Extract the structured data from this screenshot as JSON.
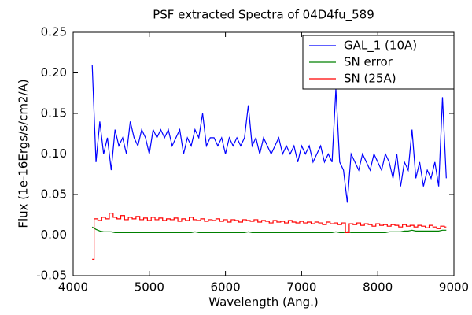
{
  "chart_data": {
    "type": "line",
    "title": "PSF extracted Spectra of 04D4fu_589",
    "xlabel": "Wavelength (Ang.)",
    "ylabel": "Flux (1e-16Ergs/s/cm2/A)",
    "x": [
      4250,
      4300,
      4350,
      4400,
      4450,
      4500,
      4550,
      4600,
      4650,
      4700,
      4750,
      4800,
      4850,
      4900,
      4950,
      5000,
      5050,
      5100,
      5150,
      5200,
      5250,
      5300,
      5350,
      5400,
      5450,
      5500,
      5550,
      5600,
      5650,
      5700,
      5750,
      5800,
      5850,
      5900,
      5950,
      6000,
      6050,
      6100,
      6150,
      6200,
      6250,
      6300,
      6350,
      6400,
      6450,
      6500,
      6550,
      6600,
      6650,
      6700,
      6750,
      6800,
      6850,
      6900,
      6950,
      7000,
      7050,
      7100,
      7150,
      7200,
      7250,
      7300,
      7350,
      7400,
      7450,
      7500,
      7550,
      7600,
      7650,
      7700,
      7750,
      7800,
      7850,
      7900,
      7950,
      8000,
      8050,
      8100,
      8150,
      8200,
      8250,
      8300,
      8350,
      8400,
      8450,
      8500,
      8550,
      8600,
      8650,
      8700,
      8750,
      8800,
      8850,
      8900
    ],
    "series": [
      {
        "name": "GAL_1 (10A)",
        "color": "#0000ff",
        "values": [
          0.21,
          0.09,
          0.14,
          0.1,
          0.12,
          0.08,
          0.13,
          0.11,
          0.12,
          0.1,
          0.14,
          0.12,
          0.11,
          0.13,
          0.12,
          0.1,
          0.13,
          0.12,
          0.13,
          0.12,
          0.13,
          0.11,
          0.12,
          0.13,
          0.1,
          0.12,
          0.11,
          0.13,
          0.12,
          0.15,
          0.11,
          0.12,
          0.12,
          0.11,
          0.12,
          0.1,
          0.12,
          0.11,
          0.12,
          0.11,
          0.12,
          0.16,
          0.11,
          0.12,
          0.1,
          0.12,
          0.11,
          0.1,
          0.11,
          0.12,
          0.1,
          0.11,
          0.1,
          0.11,
          0.09,
          0.11,
          0.1,
          0.11,
          0.09,
          0.1,
          0.11,
          0.09,
          0.1,
          0.09,
          0.18,
          0.09,
          0.08,
          0.04,
          0.1,
          0.09,
          0.08,
          0.1,
          0.09,
          0.08,
          0.1,
          0.09,
          0.08,
          0.1,
          0.09,
          0.07,
          0.1,
          0.06,
          0.09,
          0.08,
          0.13,
          0.07,
          0.09,
          0.06,
          0.08,
          0.07,
          0.09,
          0.06,
          0.17,
          0.07
        ]
      },
      {
        "name": "SN error",
        "color": "#008000",
        "values": [
          0.01,
          0.007,
          0.005,
          0.004,
          0.004,
          0.004,
          0.003,
          0.003,
          0.003,
          0.003,
          0.003,
          0.003,
          0.003,
          0.003,
          0.003,
          0.003,
          0.003,
          0.003,
          0.003,
          0.003,
          0.003,
          0.003,
          0.003,
          0.003,
          0.003,
          0.003,
          0.003,
          0.004,
          0.003,
          0.003,
          0.003,
          0.003,
          0.003,
          0.003,
          0.003,
          0.003,
          0.003,
          0.003,
          0.003,
          0.003,
          0.003,
          0.004,
          0.003,
          0.003,
          0.003,
          0.003,
          0.003,
          0.003,
          0.003,
          0.003,
          0.003,
          0.003,
          0.003,
          0.003,
          0.003,
          0.003,
          0.003,
          0.003,
          0.003,
          0.003,
          0.003,
          0.003,
          0.003,
          0.003,
          0.004,
          0.003,
          0.003,
          0.004,
          0.003,
          0.003,
          0.003,
          0.003,
          0.003,
          0.003,
          0.003,
          0.003,
          0.003,
          0.003,
          0.004,
          0.004,
          0.004,
          0.004,
          0.005,
          0.005,
          0.006,
          0.005,
          0.005,
          0.005,
          0.005,
          0.005,
          0.005,
          0.005,
          0.006,
          0.006
        ]
      },
      {
        "name": "SN (25A)",
        "color": "#ff0000",
        "drawstyle": "steps",
        "values": [
          -0.03,
          0.02,
          0.018,
          0.022,
          0.02,
          0.027,
          0.022,
          0.02,
          0.024,
          0.019,
          0.022,
          0.02,
          0.023,
          0.019,
          0.021,
          0.018,
          0.022,
          0.019,
          0.021,
          0.018,
          0.02,
          0.019,
          0.021,
          0.017,
          0.02,
          0.018,
          0.022,
          0.019,
          0.018,
          0.02,
          0.017,
          0.019,
          0.018,
          0.02,
          0.017,
          0.019,
          0.016,
          0.019,
          0.018,
          0.016,
          0.019,
          0.018,
          0.017,
          0.019,
          0.016,
          0.018,
          0.017,
          0.015,
          0.018,
          0.016,
          0.017,
          0.015,
          0.018,
          0.016,
          0.015,
          0.017,
          0.015,
          0.016,
          0.014,
          0.016,
          0.015,
          0.013,
          0.016,
          0.014,
          0.015,
          0.013,
          0.015,
          0.003,
          0.014,
          0.013,
          0.015,
          0.012,
          0.014,
          0.013,
          0.011,
          0.014,
          0.012,
          0.013,
          0.011,
          0.013,
          0.012,
          0.01,
          0.013,
          0.011,
          0.012,
          0.01,
          0.012,
          0.011,
          0.009,
          0.012,
          0.01,
          0.008,
          0.011,
          0.01
        ]
      }
    ],
    "xlim": [
      4000,
      9000
    ],
    "xticks": [
      4000,
      5000,
      6000,
      7000,
      8000,
      9000
    ],
    "ylim": [
      -0.05,
      0.25
    ],
    "yticks": [
      -0.05,
      {
        "value": 0,
        "label": "0.00"
      },
      0.05,
      {
        "value": 0.1,
        "label": "0.10"
      },
      0.15,
      {
        "value": 0.2,
        "label": "0.20"
      },
      0.25
    ],
    "grid": false,
    "legend": "upper right",
    "title_color": "#ff0000"
  }
}
